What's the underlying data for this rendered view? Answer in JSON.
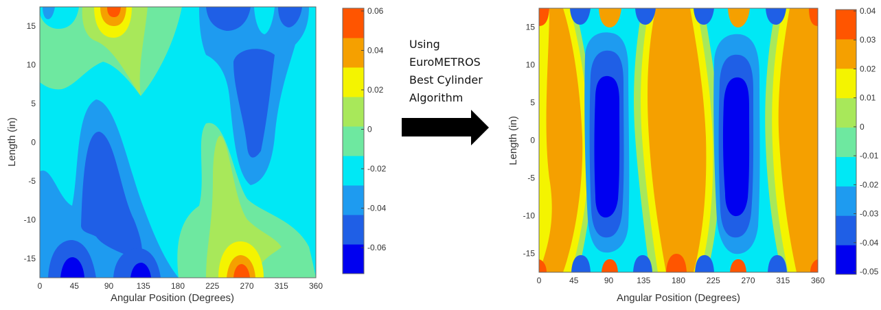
{
  "annotation": {
    "lines": [
      "Using",
      "EuroMETROS",
      "Best Cylinder",
      "Algorithm"
    ]
  },
  "colors": {
    "contour_levels_low_to_high": [
      "#0000f0",
      "#1f5fe6",
      "#1e9bf0",
      "#00e8f5",
      "#6ee8a0",
      "#a8e85a",
      "#f4f400",
      "#f5a000",
      "#ff5500"
    ]
  },
  "chart_data": [
    {
      "type": "heatmap",
      "subtype": "filled contour",
      "xlabel": "Angular Position (Degrees)",
      "ylabel": "Length (in)",
      "xlim": [
        0,
        360
      ],
      "ylim": [
        -17.5,
        17.5
      ],
      "x_ticks": [
        0,
        45,
        90,
        135,
        180,
        225,
        270,
        315,
        360
      ],
      "y_ticks": [
        15,
        10,
        5,
        0,
        -5,
        -10,
        -15
      ],
      "colorbar": {
        "ticks": [
          "0.06",
          "0.04",
          "0.02",
          "0",
          "-0.02",
          "-0.04",
          "-0.06"
        ],
        "range": [
          -0.07,
          0.065
        ]
      },
      "features": [
        {
          "x": 90,
          "y": 17.5,
          "value": 0.06,
          "kind": "high"
        },
        {
          "x": 95,
          "y": -2,
          "value": -0.04,
          "kind": "low"
        },
        {
          "x": 55,
          "y": -17,
          "value": -0.05,
          "kind": "low"
        },
        {
          "x": 135,
          "y": -17,
          "value": -0.05,
          "kind": "low"
        },
        {
          "x": 245,
          "y": 12,
          "value": -0.035,
          "kind": "low"
        },
        {
          "x": 225,
          "y": 17.5,
          "value": -0.045,
          "kind": "low"
        },
        {
          "x": 265,
          "y": -17,
          "value": 0.06,
          "kind": "high"
        },
        {
          "x": 240,
          "y": -3,
          "value": 0.02,
          "kind": "high"
        }
      ]
    },
    {
      "type": "heatmap",
      "subtype": "filled contour",
      "xlabel": "Angular Position (Degrees)",
      "ylabel": "Length (in)",
      "xlim": [
        0,
        360
      ],
      "ylim": [
        -17.5,
        17.5
      ],
      "x_ticks": [
        0,
        45,
        90,
        135,
        180,
        225,
        270,
        315,
        360
      ],
      "y_ticks": [
        15,
        10,
        5,
        0,
        -5,
        -10,
        -15
      ],
      "colorbar": {
        "ticks": [
          "0.04",
          "0.03",
          "0.02",
          "0.01",
          "0",
          "-0.01",
          "-0.02",
          "-0.03",
          "-0.04",
          "-0.05"
        ],
        "range": [
          -0.05,
          0.04
        ]
      },
      "features": [
        {
          "x": 95,
          "y": 0,
          "value": -0.05,
          "kind": "low"
        },
        {
          "x": 275,
          "y": 0,
          "value": -0.05,
          "kind": "low"
        },
        {
          "x": 30,
          "y": 0,
          "value": 0.03,
          "kind": "high"
        },
        {
          "x": 180,
          "y": 0,
          "value": 0.03,
          "kind": "high"
        },
        {
          "x": 345,
          "y": 0,
          "value": 0.03,
          "kind": "high"
        },
        {
          "x": 180,
          "y": -17,
          "value": 0.04,
          "kind": "high"
        },
        {
          "x": 90,
          "y": 17.5,
          "value": 0.03,
          "kind": "high"
        },
        {
          "x": 270,
          "y": 17.5,
          "value": 0.03,
          "kind": "high"
        },
        {
          "x": 45,
          "y": 17.5,
          "value": -0.04,
          "kind": "low"
        },
        {
          "x": 225,
          "y": 17.5,
          "value": -0.04,
          "kind": "low"
        },
        {
          "x": 135,
          "y": -17,
          "value": -0.04,
          "kind": "low"
        },
        {
          "x": 315,
          "y": -17,
          "value": -0.04,
          "kind": "low"
        }
      ]
    }
  ]
}
